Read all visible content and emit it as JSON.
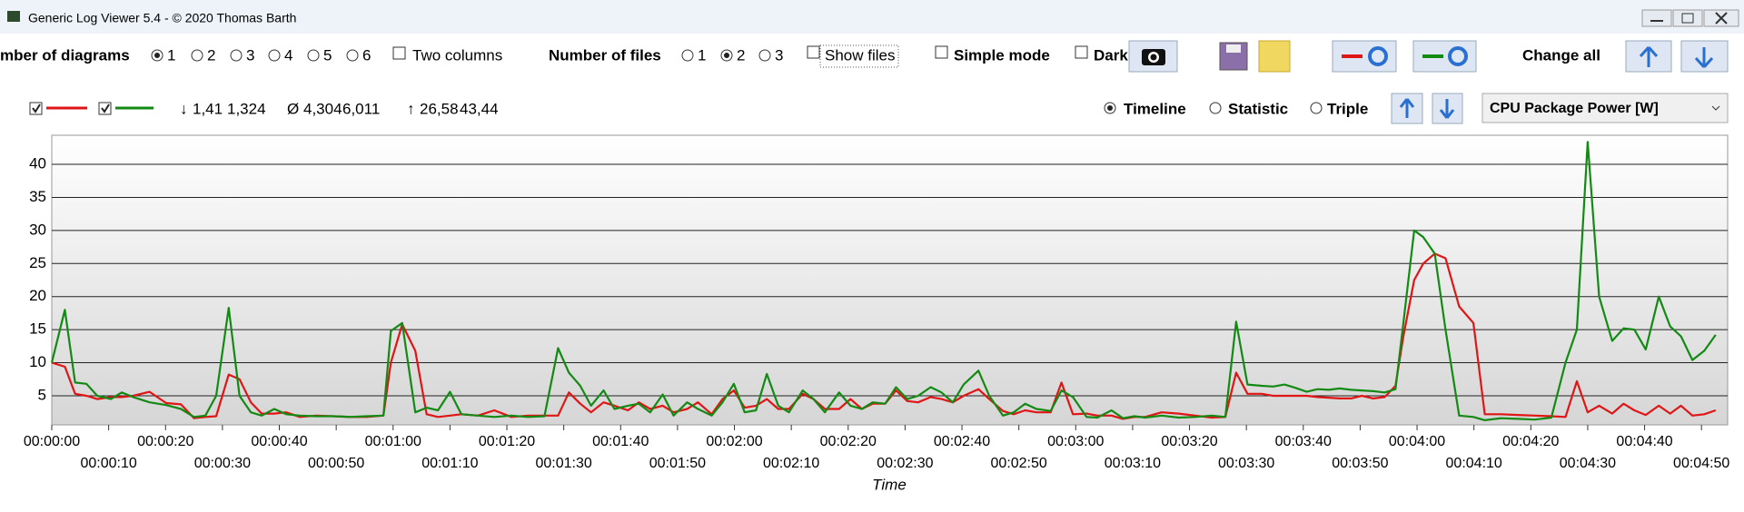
{
  "window": {
    "title": "Generic Log Viewer 5.4 - © 2020 Thomas Barth"
  },
  "toolbar": {
    "diagrams_label": "mber of diagrams",
    "diagram_options": [
      "1",
      "2",
      "3",
      "4",
      "5",
      "6"
    ],
    "two_columns": "Two columns",
    "files_label": "Number of files",
    "file_options": [
      "1",
      "2",
      "3"
    ],
    "show_files": "Show files",
    "simple_mode": "Simple mode",
    "dark": "Dark",
    "change_all": "Change all"
  },
  "view": {
    "modes": [
      "Timeline",
      "Statistic",
      "Triple"
    ],
    "channel": "CPU Package Power [W]",
    "min_symbol": "↓",
    "mean_symbol": "Ø",
    "max_symbol": "↑",
    "min": [
      "1,41",
      "1,324"
    ],
    "mean": [
      "4,304",
      "6,011"
    ],
    "max": [
      "26,58",
      "43,44"
    ]
  },
  "chart_data": {
    "type": "line",
    "x_label": "Time",
    "x": [
      0,
      2.3,
      4.1,
      6.1,
      8.0,
      10.4,
      12.3,
      14.3,
      17.2,
      20.1,
      22.7,
      25.0,
      27.0,
      28.9,
      31.1,
      33.0,
      35.0,
      36.9,
      39.1,
      41.2,
      43.6,
      46.5,
      49.5,
      52.4,
      55.3,
      58.3,
      59.6,
      61.6,
      63.9,
      65.9,
      67.9,
      70.0,
      72.0,
      74.9,
      77.8,
      80.8,
      83.7,
      86.6,
      89.0,
      90.9,
      92.9,
      94.8,
      97.0,
      98.9,
      101.3,
      103.2,
      105.2,
      107.4,
      109.3,
      111.7,
      113.6,
      116.0,
      117.9,
      119.9,
      121.8,
      123.8,
      125.7,
      127.7,
      129.6,
      132.0,
      133.9,
      135.9,
      138.4,
      140.4,
      142.4,
      144.3,
      146.5,
      148.4,
      150.4,
      152.3,
      154.5,
      156.4,
      158.4,
      160.3,
      162.9,
      164.8,
      167.2,
      169.1,
      171.1,
      173.1,
      175.6,
      177.5,
      179.5,
      181.9,
      183.8,
      186.3,
      188.3,
      190.3,
      192.2,
      195.1,
      198.1,
      201.0,
      203.9,
      206.3,
      208.2,
      210.2,
      212.7,
      214.7,
      216.7,
      218.6,
      220.6,
      222.5,
      224.5,
      226.4,
      228.4,
      230.3,
      232.3,
      234.3,
      236.2,
      237.6,
      239.5,
      241.1,
      243.1,
      245.0,
      247.4,
      249.9,
      251.9,
      254.8,
      257.7,
      260.7,
      263.6,
      266.1,
      268.1,
      270.0,
      272.0,
      274.3,
      276.3,
      278.2,
      280.2,
      282.5,
      284.5,
      286.4,
      288.4,
      290.5,
      292.5
    ],
    "series": [
      {
        "color": "#e01515",
        "values": [
          10,
          9.4,
          5.3,
          5,
          4.5,
          4.8,
          4.8,
          5,
          5.6,
          3.9,
          3.7,
          1.6,
          1.8,
          1.9,
          8.2,
          7.5,
          4,
          2.3,
          2.3,
          2.5,
          1.8,
          2,
          1.9,
          1.8,
          1.8,
          2,
          10,
          15.8,
          11.8,
          2.2,
          1.8,
          2,
          2.2,
          2,
          2.8,
          1.8,
          2,
          2,
          2,
          5.5,
          3.8,
          2.5,
          4,
          3.5,
          2.8,
          4,
          3,
          3.5,
          2.5,
          3,
          4,
          2.2,
          4.5,
          5.8,
          3.2,
          3.5,
          4.5,
          3,
          3,
          5.3,
          4.5,
          3,
          3,
          4.5,
          3,
          3.8,
          3.8,
          5.8,
          4.2,
          4,
          4.8,
          4.5,
          4,
          5,
          6,
          4.5,
          2.7,
          2.2,
          2.8,
          2.5,
          2.5,
          7,
          2.2,
          2.3,
          2,
          2,
          1.5,
          1.8,
          1.8,
          2.5,
          2.3,
          2,
          1.7,
          1.8,
          8.5,
          5.3,
          5.3,
          5,
          5,
          5,
          5,
          4.8,
          4.7,
          4.6,
          4.6,
          5,
          4.6,
          4.8,
          6.5,
          14,
          22.5,
          25,
          26.5,
          25.8,
          18.5,
          16,
          2.2,
          2.2,
          2.1,
          2,
          1.9,
          1.8,
          7.2,
          2.5,
          3.5,
          2.3,
          3.8,
          2.8,
          2.1,
          3.5,
          2.3,
          3.5,
          2,
          2.2,
          2.8
        ]
      },
      {
        "color": "#138a13",
        "values": [
          10,
          18,
          7,
          6.8,
          5,
          4.5,
          5.5,
          4.8,
          4,
          3.6,
          3,
          1.8,
          2,
          5,
          18.3,
          5,
          2.5,
          2,
          3,
          2.2,
          2,
          1.9,
          1.9,
          1.8,
          1.9,
          2,
          14.8,
          16,
          2.5,
          3.2,
          2.8,
          5.6,
          2.2,
          2,
          1.8,
          2,
          1.8,
          1.9,
          12.2,
          8.5,
          6.5,
          3.5,
          5.8,
          3,
          3.5,
          3.8,
          2.5,
          5.2,
          2,
          4,
          3,
          2,
          4,
          6.8,
          2.5,
          2.8,
          8.3,
          3.5,
          2.5,
          5.8,
          4.5,
          2.5,
          5.5,
          3.5,
          3,
          4,
          3.8,
          6.3,
          4.5,
          5,
          6.3,
          5.5,
          4,
          6.7,
          8.8,
          5,
          2,
          2.5,
          3.8,
          3,
          2.7,
          5.8,
          4.8,
          1.8,
          1.7,
          2.8,
          1.6,
          1.9,
          1.7,
          2,
          1.7,
          1.8,
          2,
          1.8,
          16.2,
          6.7,
          6.5,
          6.4,
          6.7,
          6.2,
          5.6,
          6,
          5.9,
          6.1,
          5.9,
          5.8,
          5.7,
          5.5,
          6,
          16,
          30,
          29,
          26.5,
          15,
          2,
          1.8,
          1.3,
          1.6,
          1.5,
          1.4,
          1.7,
          10,
          15,
          43.4,
          20,
          13.3,
          15.2,
          15,
          12,
          20,
          15.5,
          14,
          10.4,
          11.8,
          14.2
        ]
      }
    ],
    "xlim": [
      0,
      294.6
    ],
    "xticks": [
      {
        "value": 0,
        "label": "00:00:00"
      },
      {
        "value": 10,
        "label": "00:00:10"
      },
      {
        "value": 20,
        "label": "00:00:20"
      },
      {
        "value": 30,
        "label": "00:00:30"
      },
      {
        "value": 40,
        "label": "00:00:40"
      },
      {
        "value": 50,
        "label": "00:00:50"
      },
      {
        "value": 60,
        "label": "00:01:00"
      },
      {
        "value": 70,
        "label": "00:01:10"
      },
      {
        "value": 80,
        "label": "00:01:20"
      },
      {
        "value": 90,
        "label": "00:01:30"
      },
      {
        "value": 100,
        "label": "00:01:40"
      },
      {
        "value": 110,
        "label": "00:01:50"
      },
      {
        "value": 120,
        "label": "00:02:00"
      },
      {
        "value": 130,
        "label": "00:02:10"
      },
      {
        "value": 140,
        "label": "00:02:20"
      },
      {
        "value": 150,
        "label": "00:02:30"
      },
      {
        "value": 160,
        "label": "00:02:40"
      },
      {
        "value": 170,
        "label": "00:02:50"
      },
      {
        "value": 180,
        "label": "00:03:00"
      },
      {
        "value": 190,
        "label": "00:03:10"
      },
      {
        "value": 200,
        "label": "00:03:20"
      },
      {
        "value": 210,
        "label": "00:03:30"
      },
      {
        "value": 220,
        "label": "00:03:40"
      },
      {
        "value": 230,
        "label": "00:03:50"
      },
      {
        "value": 240,
        "label": "00:04:00"
      },
      {
        "value": 250,
        "label": "00:04:10"
      },
      {
        "value": 260,
        "label": "00:04:20"
      },
      {
        "value": 270,
        "label": "00:04:30"
      },
      {
        "value": 280,
        "label": "00:04:40"
      },
      {
        "value": 290,
        "label": "00:04:50"
      }
    ],
    "ylim": [
      0.6,
      44.4
    ],
    "yticks": [
      5,
      10,
      15,
      20,
      25,
      30,
      35,
      40
    ],
    "grid": true
  }
}
